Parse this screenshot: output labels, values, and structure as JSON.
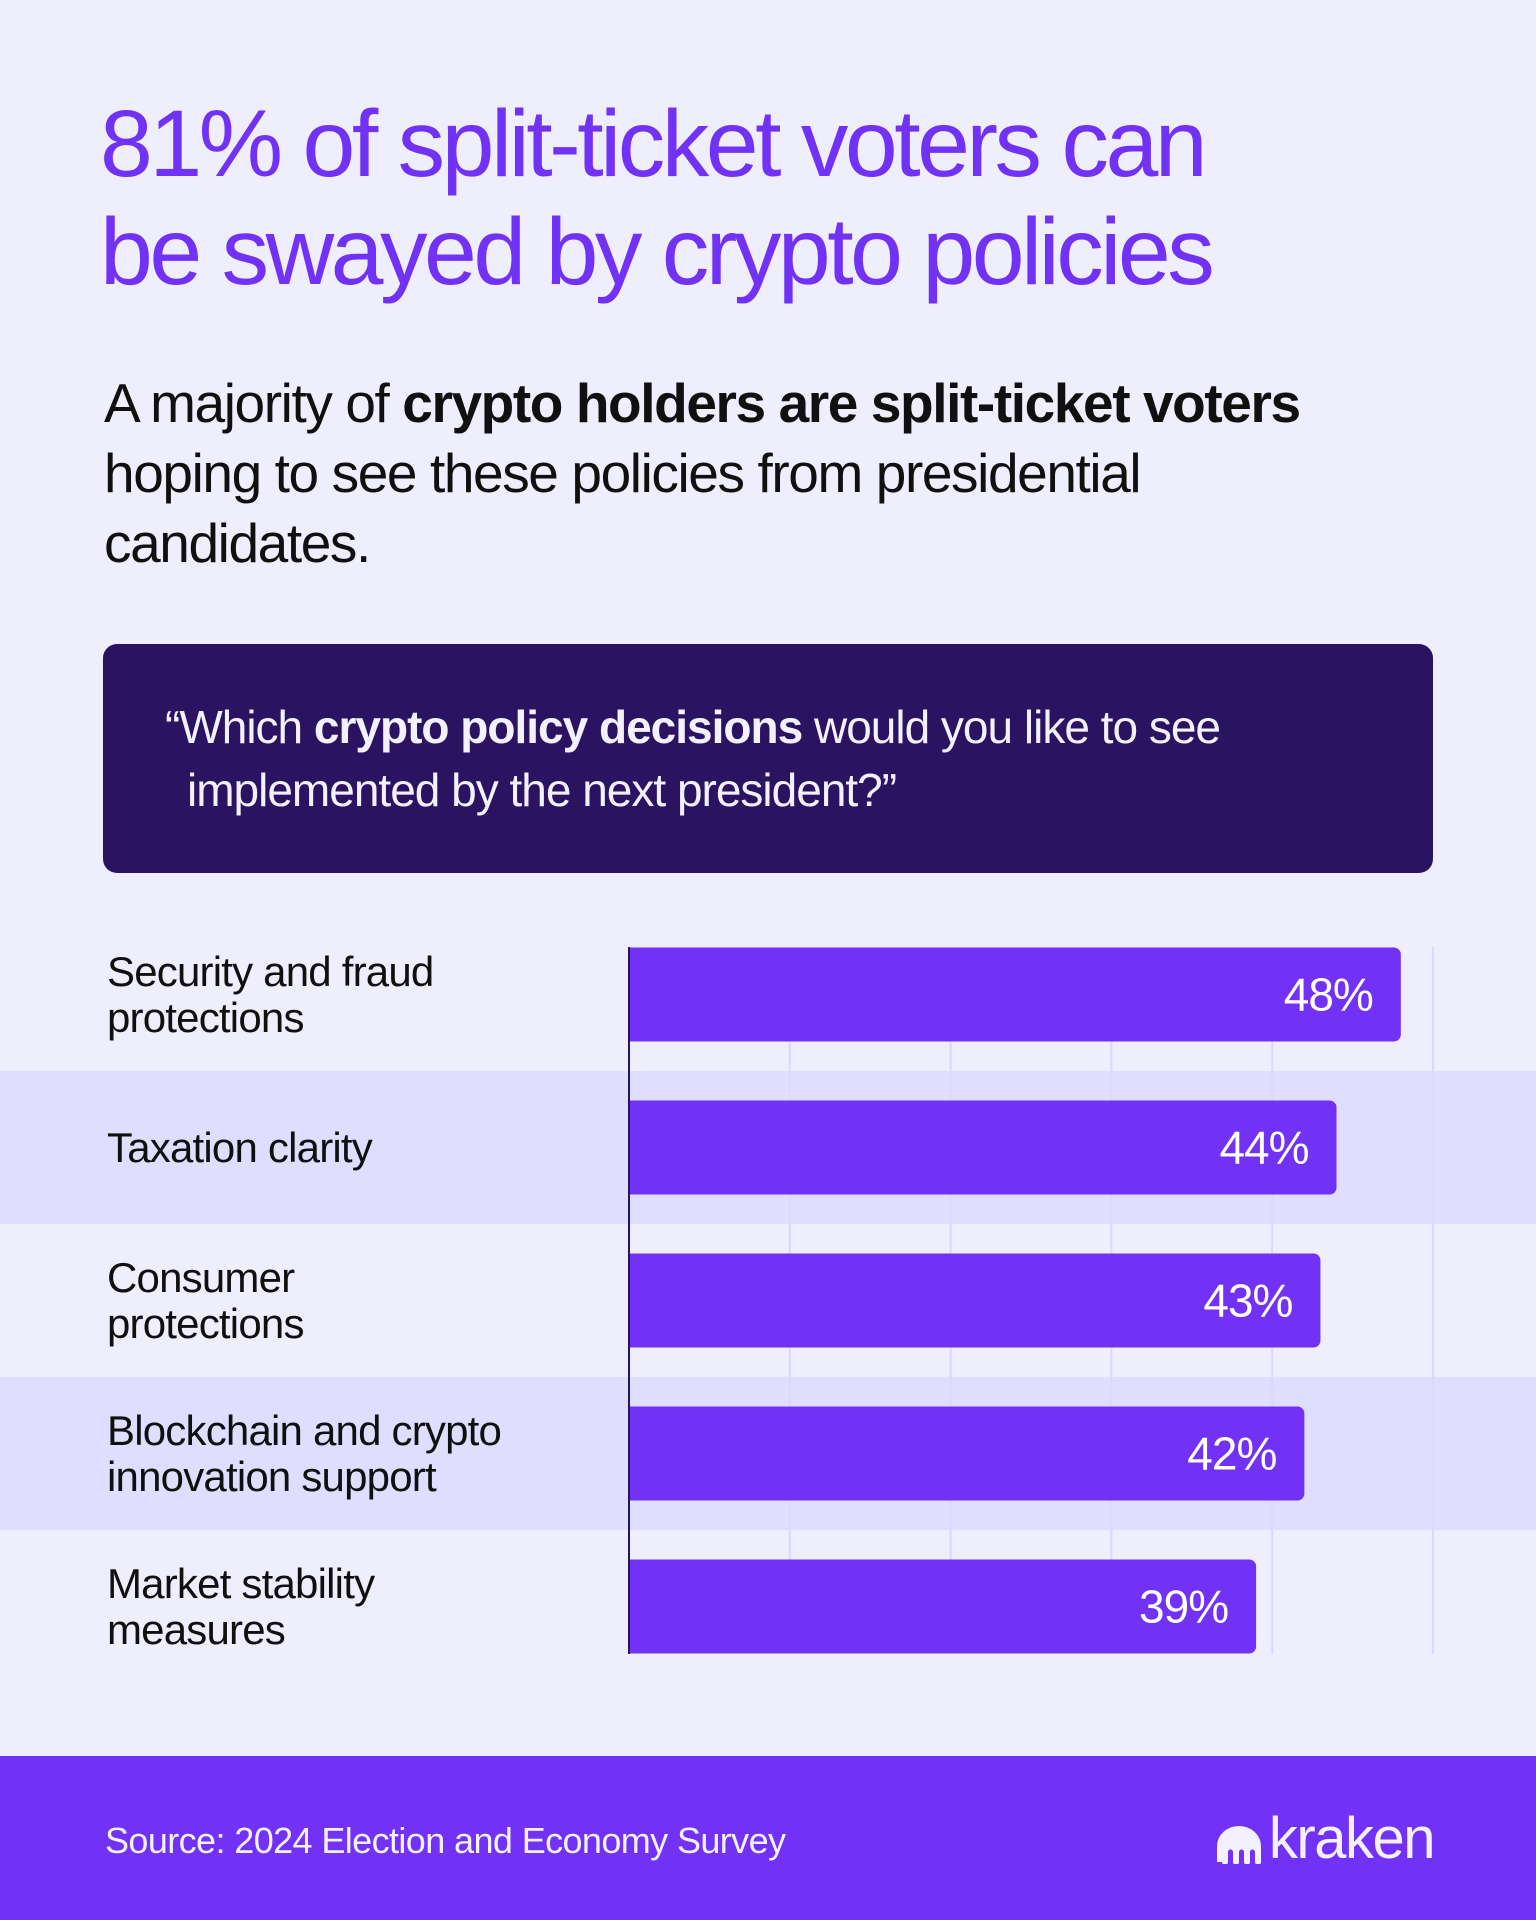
{
  "headline": {
    "line1": "81% of split-ticket voters can",
    "line2": "be swayed by crypto policies"
  },
  "subtitle": {
    "part1": "A majority of ",
    "bold": "crypto holders are split-ticket voters",
    "part2": " hoping to see these policies from presidential candidates."
  },
  "question": {
    "open_quote": "“",
    "part1": "Which ",
    "bold": "crypto policy decisions",
    "part2": " would you like to see implemented by the next president?”"
  },
  "colors": {
    "background": "#EFEEFD",
    "accent": "#7132F5",
    "dark_box": "#2A1461",
    "stripe": "#E0DEFE",
    "gridline": "#DCD8FB",
    "axis": "#2A1461",
    "bar_label": "#FFFFFF"
  },
  "chart_data": {
    "type": "bar",
    "orientation": "horizontal",
    "title": "Which crypto policy decisions would you like to see implemented by the next president?",
    "categories": [
      "Security and fraud protections",
      "Taxation clarity",
      "Consumer protections",
      "Blockchain and crypto innovation support",
      "Market stability measures"
    ],
    "category_lines": [
      [
        "Security and fraud",
        "protections"
      ],
      [
        "Taxation clarity"
      ],
      [
        "Consumer",
        "protections"
      ],
      [
        "Blockchain and crypto",
        "innovation support"
      ],
      [
        "Market stability",
        "measures"
      ]
    ],
    "values": [
      48,
      44,
      43,
      42,
      39
    ],
    "value_labels": [
      "48%",
      "44%",
      "43%",
      "42%",
      "39%"
    ],
    "unit": "%",
    "xlim": [
      0,
      50
    ],
    "gridlines": [
      10,
      20,
      30,
      40,
      50
    ],
    "grid": true,
    "xlabel": "",
    "ylabel": "",
    "legend": "none",
    "alternating_row_stripes": true
  },
  "footer": {
    "source": "Source: 2024 Election and Economy Survey",
    "brand": "kraken",
    "brand_icon": "kraken-logo-icon"
  }
}
